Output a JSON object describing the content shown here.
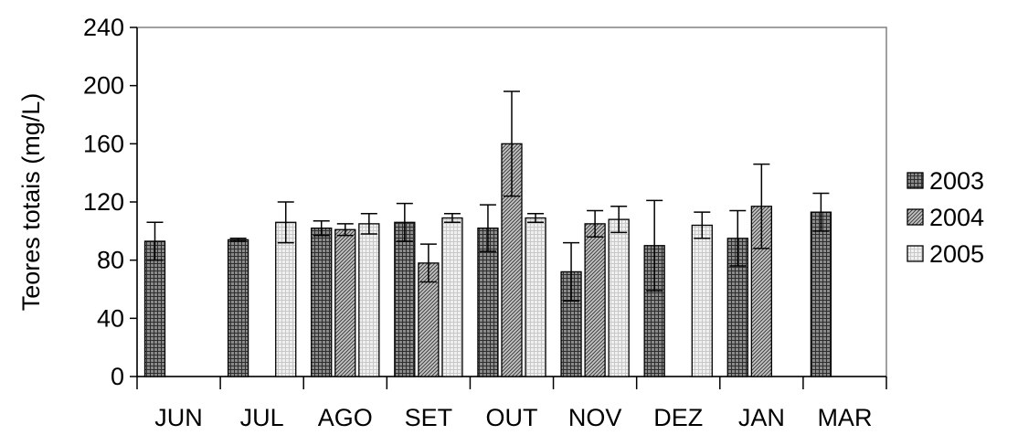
{
  "chart_data": {
    "type": "bar",
    "title": "",
    "xlabel": "",
    "ylabel": "Teores totais (mg/L)",
    "ylim": [
      0,
      240
    ],
    "yticks": [
      0,
      40,
      80,
      120,
      160,
      200,
      240
    ],
    "categories": [
      "JUN",
      "JUL",
      "AGO",
      "SET",
      "OUT",
      "NOV",
      "DEZ",
      "JAN",
      "MAR"
    ],
    "legend_position": "right",
    "grid": false,
    "series": [
      {
        "name": "2003",
        "values": [
          93,
          94,
          102,
          106,
          102,
          72,
          90,
          95,
          113
        ],
        "errors": [
          13,
          1,
          5,
          13,
          16,
          20,
          31,
          19,
          13
        ],
        "pattern": "grid",
        "color": "#808080"
      },
      {
        "name": "2004",
        "values": [
          null,
          null,
          101,
          78,
          160,
          105,
          null,
          117,
          null
        ],
        "errors": [
          null,
          null,
          4,
          13,
          36,
          9,
          null,
          29,
          null
        ],
        "pattern": "diagonal",
        "color": "#b0b0b0"
      },
      {
        "name": "2005",
        "values": [
          null,
          106,
          105,
          109,
          109,
          108,
          104,
          null,
          null
        ],
        "errors": [
          null,
          14,
          7,
          3,
          3,
          9,
          9,
          null,
          null
        ],
        "pattern": "light",
        "color": "#e6e6e6"
      }
    ]
  }
}
